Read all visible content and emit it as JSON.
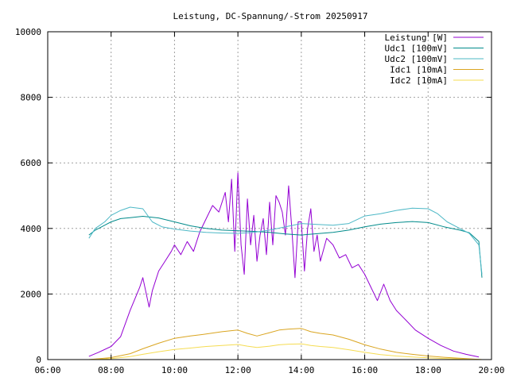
{
  "chart_data": {
    "type": "line",
    "title": "Leistung, DC-Spannung/-Strom 20250917",
    "xlabel": "",
    "ylabel": "",
    "x_unit": "hours",
    "xlim": [
      6,
      20
    ],
    "ylim": [
      0,
      10000
    ],
    "x_ticks": [
      {
        "value": 6,
        "label": "06:00"
      },
      {
        "value": 8,
        "label": "08:00"
      },
      {
        "value": 10,
        "label": "10:00"
      },
      {
        "value": 12,
        "label": "12:00"
      },
      {
        "value": 14,
        "label": "14:00"
      },
      {
        "value": 16,
        "label": "16:00"
      },
      {
        "value": 18,
        "label": "18:00"
      },
      {
        "value": 20,
        "label": "20:00"
      }
    ],
    "y_ticks": [
      {
        "value": 0,
        "label": "0"
      },
      {
        "value": 2000,
        "label": "2000"
      },
      {
        "value": 4000,
        "label": "4000"
      },
      {
        "value": 6000,
        "label": "6000"
      },
      {
        "value": 8000,
        "label": "8000"
      },
      {
        "value": 10000,
        "label": "10000"
      }
    ],
    "grid": true,
    "legend_position": "top-right",
    "series": [
      {
        "name": "Leistung [W]",
        "color": "#9400d3",
        "x": [
          7.3,
          7.6,
          8.0,
          8.3,
          8.6,
          8.9,
          9.0,
          9.2,
          9.3,
          9.5,
          9.7,
          9.9,
          10.0,
          10.2,
          10.4,
          10.6,
          10.8,
          11.0,
          11.2,
          11.4,
          11.6,
          11.7,
          11.8,
          11.9,
          12.0,
          12.1,
          12.2,
          12.3,
          12.4,
          12.5,
          12.6,
          12.7,
          12.8,
          12.9,
          13.0,
          13.1,
          13.2,
          13.3,
          13.4,
          13.5,
          13.6,
          13.7,
          13.8,
          13.9,
          14.0,
          14.1,
          14.2,
          14.3,
          14.4,
          14.5,
          14.6,
          14.8,
          15.0,
          15.2,
          15.4,
          15.6,
          15.8,
          16.0,
          16.2,
          16.4,
          16.6,
          16.8,
          17.0,
          17.3,
          17.6,
          18.0,
          18.4,
          18.8,
          19.2,
          19.6
        ],
        "y": [
          100,
          220,
          400,
          700,
          1500,
          2200,
          2500,
          1600,
          2100,
          2700,
          3000,
          3300,
          3500,
          3200,
          3600,
          3300,
          3900,
          4300,
          4700,
          4500,
          5100,
          4200,
          5500,
          3300,
          5700,
          3500,
          2600,
          4900,
          3500,
          4400,
          3000,
          3800,
          4300,
          3200,
          4800,
          3500,
          5000,
          4800,
          4500,
          3800,
          5300,
          4000,
          2500,
          4200,
          4200,
          2700,
          4000,
          4600,
          3300,
          3800,
          3000,
          3700,
          3500,
          3100,
          3200,
          2800,
          2900,
          2600,
          2200,
          1800,
          2300,
          1800,
          1500,
          1200,
          900,
          650,
          430,
          260,
          160,
          80
        ]
      },
      {
        "name": "Udc1 [100mV]",
        "color": "#008b8b",
        "x": [
          7.3,
          7.5,
          7.8,
          8.0,
          8.3,
          8.6,
          9.0,
          9.5,
          10.0,
          10.5,
          11.0,
          11.5,
          12.0,
          12.5,
          13.0,
          13.5,
          14.0,
          14.5,
          15.0,
          15.5,
          16.0,
          16.5,
          17.0,
          17.5,
          18.0,
          18.5,
          19.0,
          19.3,
          19.6,
          19.7
        ],
        "y": [
          3800,
          3950,
          4100,
          4200,
          4300,
          4330,
          4370,
          4320,
          4200,
          4080,
          4000,
          3950,
          3930,
          3910,
          3880,
          3830,
          3800,
          3840,
          3880,
          3950,
          4050,
          4130,
          4180,
          4210,
          4180,
          4050,
          3950,
          3870,
          3600,
          2500
        ]
      },
      {
        "name": "Udc2 [100mV]",
        "color": "#4db8c6",
        "x": [
          7.3,
          7.5,
          7.8,
          8.0,
          8.3,
          8.6,
          9.0,
          9.3,
          9.6,
          10.0,
          10.5,
          11.0,
          11.5,
          12.0,
          12.5,
          13.0,
          13.5,
          14.0,
          14.5,
          15.0,
          15.5,
          16.0,
          16.5,
          17.0,
          17.5,
          18.0,
          18.3,
          18.6,
          19.0,
          19.3,
          19.6,
          19.7
        ],
        "y": [
          3700,
          4000,
          4200,
          4400,
          4550,
          4650,
          4600,
          4200,
          4050,
          3980,
          3920,
          3880,
          3860,
          3850,
          3880,
          3950,
          4050,
          4150,
          4120,
          4100,
          4150,
          4380,
          4450,
          4550,
          4620,
          4600,
          4450,
          4200,
          4000,
          3850,
          3500,
          2600
        ]
      },
      {
        "name": "Idc1 [10mA]",
        "color": "#daa520",
        "x": [
          7.3,
          8.0,
          8.6,
          9.0,
          9.5,
          10.0,
          10.5,
          11.0,
          11.5,
          12.0,
          12.3,
          12.6,
          13.0,
          13.3,
          13.6,
          14.0,
          14.3,
          14.6,
          15.0,
          15.5,
          16.0,
          16.5,
          17.0,
          17.5,
          18.0,
          18.5,
          19.0,
          19.4,
          19.7
        ],
        "y": [
          0,
          60,
          180,
          330,
          500,
          650,
          720,
          780,
          850,
          900,
          800,
          720,
          820,
          900,
          930,
          950,
          850,
          800,
          750,
          620,
          450,
          320,
          220,
          160,
          110,
          70,
          40,
          20,
          0
        ]
      },
      {
        "name": "Idc2 [10mA]",
        "color": "#f5dc52",
        "x": [
          7.3,
          8.0,
          8.6,
          9.0,
          9.5,
          10.0,
          10.5,
          11.0,
          11.5,
          12.0,
          12.3,
          12.6,
          13.0,
          13.3,
          13.6,
          14.0,
          14.3,
          14.6,
          15.0,
          15.5,
          16.0,
          16.5,
          17.0,
          17.5,
          18.0,
          18.5,
          19.0,
          19.4,
          19.7
        ],
        "y": [
          0,
          30,
          90,
          160,
          240,
          310,
          350,
          400,
          430,
          460,
          410,
          370,
          410,
          450,
          470,
          480,
          430,
          400,
          370,
          300,
          220,
          150,
          110,
          80,
          55,
          35,
          20,
          10,
          0
        ]
      }
    ]
  }
}
